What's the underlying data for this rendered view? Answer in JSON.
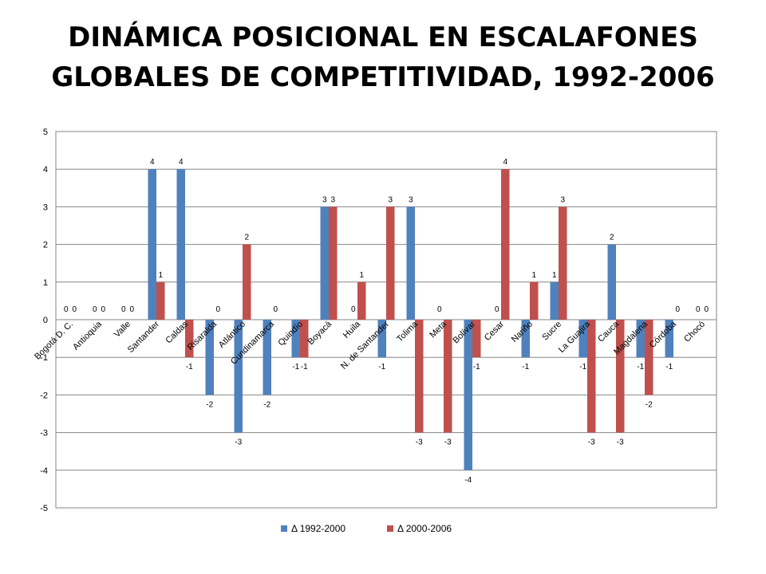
{
  "chart_data": {
    "type": "bar",
    "title_lines": [
      "DINÁMICA POSICIONAL EN  ESCALAFONES",
      "GLOBALES DE COMPETITIVIDAD, 1992-2006"
    ],
    "categories": [
      "Bogotá D. C.",
      "Antioquia",
      "Valle",
      "Santander",
      "Caldas",
      "Risaralda",
      "Atlántico",
      "Cundinamarca",
      "Quindío",
      "Boyacá",
      "Huila",
      "N. de Santander",
      "Tolima",
      "Meta",
      "Bolívar",
      "Cesar",
      "Nariño",
      "Sucre",
      "La Guajira",
      "Cauca",
      "Magdalena",
      "Córdoba",
      "Chocó"
    ],
    "series": [
      {
        "name": "Δ 1992-2000",
        "color": "#4F81BD",
        "values": [
          0,
          0,
          0,
          4,
          4,
          -2,
          -3,
          -2,
          -1,
          3,
          0,
          -1,
          3,
          0,
          -4,
          0,
          -1,
          1,
          -1,
          2,
          -1,
          -1,
          0
        ]
      },
      {
        "name": "Δ 2000-2006",
        "color": "#C0504D",
        "values": [
          0,
          0,
          0,
          1,
          -1,
          0,
          2,
          0,
          -1,
          3,
          1,
          3,
          -3,
          -3,
          -1,
          4,
          1,
          3,
          -3,
          -3,
          -2,
          0,
          0
        ]
      }
    ],
    "ylim": [
      -5,
      5
    ],
    "y_ticks": [
      "-5",
      "-4",
      "-3",
      "-2",
      "-1",
      "0",
      "1",
      "2",
      "3",
      "4",
      "5"
    ],
    "grid": true,
    "legend_position": "bottom",
    "data_labels": true
  }
}
